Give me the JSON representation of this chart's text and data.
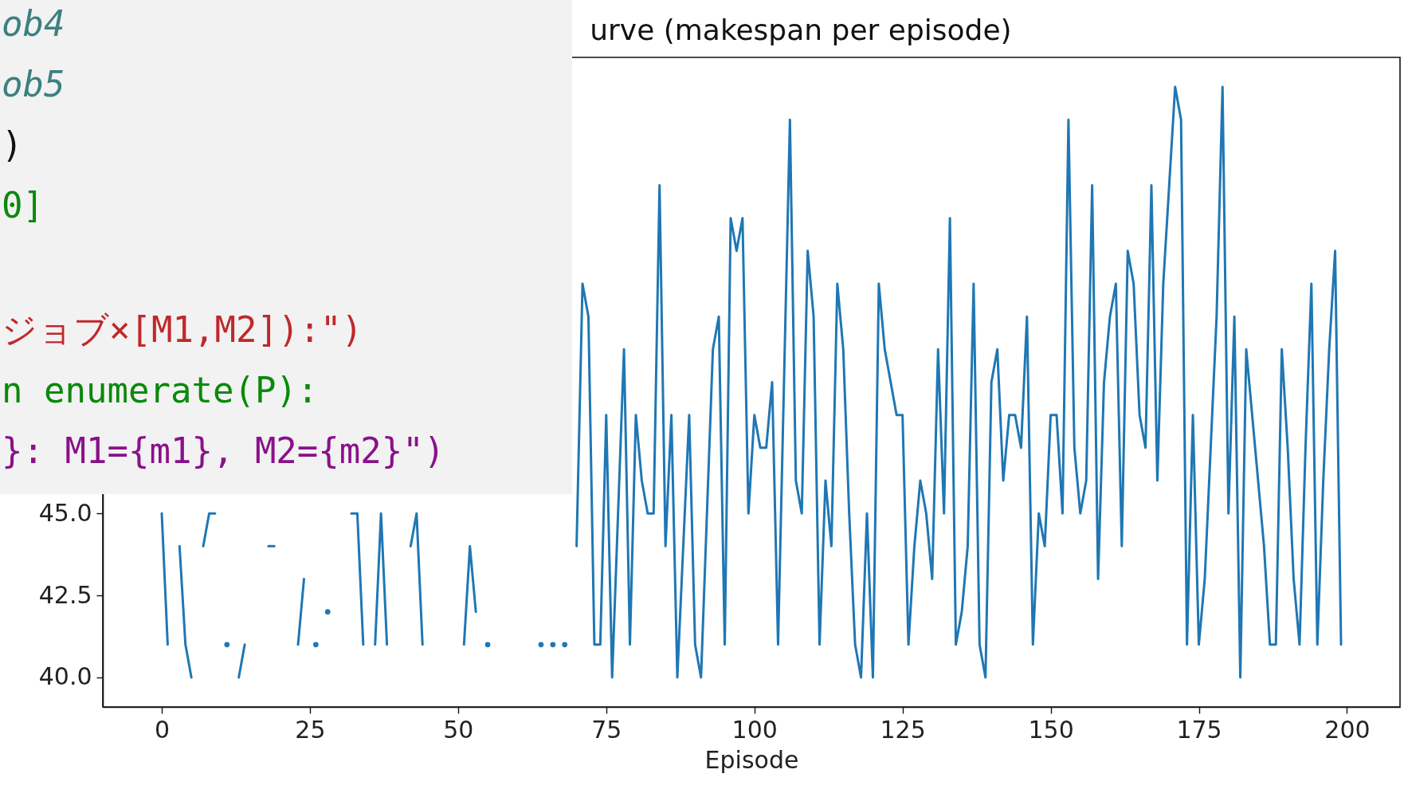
{
  "chart_data": {
    "type": "line",
    "title": "urve (makespan per episode)",
    "xlabel": "Episode",
    "x": [
      0,
      1,
      2,
      3,
      4,
      5,
      6,
      7,
      8,
      9,
      10,
      11,
      12,
      13,
      14,
      15,
      16,
      17,
      18,
      19,
      20,
      21,
      22,
      23,
      24,
      25,
      26,
      27,
      28,
      29,
      30,
      31,
      32,
      33,
      34,
      35,
      36,
      37,
      38,
      39,
      40,
      41,
      42,
      43,
      44,
      45,
      46,
      47,
      48,
      49,
      50,
      51,
      52,
      53,
      54,
      55,
      56,
      57,
      58,
      59,
      60,
      61,
      62,
      63,
      64,
      65,
      66,
      67,
      68,
      69,
      70,
      71,
      72,
      73,
      74,
      75,
      76,
      77,
      78,
      79,
      80,
      81,
      82,
      83,
      84,
      85,
      86,
      87,
      88,
      89,
      90,
      91,
      92,
      93,
      94,
      95,
      96,
      97,
      98,
      99,
      100,
      101,
      102,
      103,
      104,
      105,
      106,
      107,
      108,
      109,
      110,
      111,
      112,
      113,
      114,
      115,
      116,
      117,
      118,
      119,
      120,
      121,
      122,
      123,
      124,
      125,
      126,
      127,
      128,
      129,
      130,
      131,
      132,
      133,
      134,
      135,
      136,
      137,
      138,
      139,
      140,
      141,
      142,
      143,
      144,
      145,
      146,
      147,
      148,
      149,
      150,
      151,
      152,
      153,
      154,
      155,
      156,
      157,
      158,
      159,
      160,
      161,
      162,
      163,
      164,
      165,
      166,
      167,
      168,
      169,
      170,
      171,
      172,
      173,
      174,
      175,
      176,
      177,
      178,
      179,
      180,
      181,
      182,
      183,
      184,
      185,
      186,
      187,
      188,
      189,
      190,
      191,
      192,
      193,
      194,
      195,
      196,
      197,
      198,
      199
    ],
    "series": [
      {
        "color": "#1f77b4",
        "values": [
          45,
          41,
          null,
          44,
          41,
          40,
          null,
          44,
          45,
          45,
          null,
          41,
          null,
          40,
          41,
          null,
          null,
          null,
          44,
          44,
          null,
          null,
          null,
          41,
          43,
          null,
          41,
          null,
          42,
          null,
          null,
          null,
          45,
          45,
          41,
          null,
          41,
          45,
          41,
          null,
          null,
          null,
          44,
          45,
          41,
          null,
          null,
          null,
          null,
          null,
          null,
          41,
          44,
          42,
          null,
          41,
          null,
          null,
          null,
          null,
          null,
          null,
          null,
          null,
          41,
          null,
          41,
          null,
          41,
          null,
          44,
          52,
          51,
          41,
          41,
          48,
          40,
          45,
          50,
          41,
          48,
          46,
          45,
          45,
          55,
          44,
          48,
          40,
          44,
          48,
          41,
          40,
          45,
          50,
          51,
          41,
          54,
          53,
          54,
          45,
          48,
          47,
          47,
          49,
          41,
          49,
          57,
          46,
          45,
          53,
          51,
          41,
          46,
          44,
          52,
          50,
          45,
          41,
          40,
          45,
          40,
          52,
          50,
          49,
          48,
          48,
          41,
          44,
          46,
          45,
          43,
          50,
          45,
          54,
          41,
          42,
          44,
          52,
          41,
          40,
          49,
          50,
          46,
          48,
          48,
          47,
          51,
          41,
          45,
          44,
          48,
          48,
          45,
          57,
          47,
          45,
          46,
          55,
          43,
          49,
          51,
          52,
          44,
          53,
          52,
          48,
          47,
          55,
          46,
          52,
          55,
          58,
          57,
          41,
          48,
          41,
          43,
          47,
          51,
          58,
          45,
          51,
          40,
          50,
          48,
          46,
          44,
          41,
          41,
          50,
          47,
          43,
          41,
          47,
          52,
          41,
          46,
          50,
          53,
          41
        ]
      }
    ],
    "xlim": [
      -9.95,
      208.95
    ],
    "xticks": [
      0,
      25,
      50,
      75,
      100,
      125,
      150,
      175,
      200
    ],
    "ylim": [
      39.1,
      58.9
    ],
    "yticks": [
      {
        "value": 40,
        "label": "40.0"
      },
      {
        "value": 42.5,
        "label": "42.5"
      },
      {
        "value": 45,
        "label": "45.0"
      }
    ],
    "line_style": "solid",
    "annotations": [
      "ob4",
      "ob5",
      ")",
      "0]",
      "ジョブ×[M1,M2]):\")",
      "n enumerate(P):",
      "}: M1={m1}, M2={m2}\")"
    ]
  }
}
